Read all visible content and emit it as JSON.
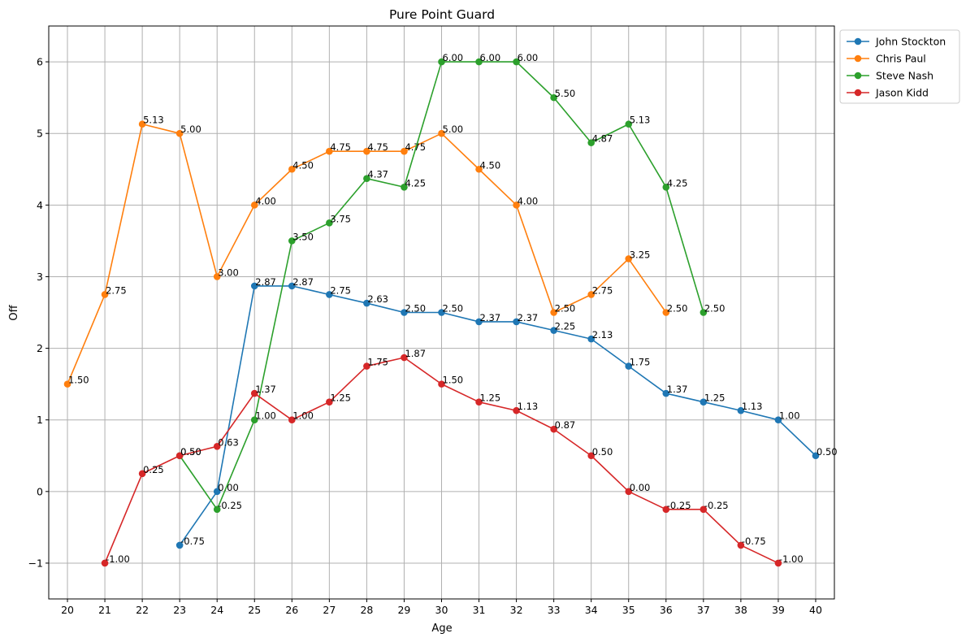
{
  "chart_data": {
    "type": "line",
    "title": "Pure Point Guard",
    "xlabel": "Age",
    "ylabel": "Off",
    "xlim": [
      19.5,
      40.5
    ],
    "ylim": [
      -1.5,
      6.5
    ],
    "x_ticks": [
      20,
      21,
      22,
      23,
      24,
      25,
      26,
      27,
      28,
      29,
      30,
      31,
      32,
      33,
      34,
      35,
      36,
      37,
      38,
      39,
      40
    ],
    "y_ticks": [
      -1,
      0,
      1,
      2,
      3,
      4,
      5,
      6
    ],
    "y_tick_labels": [
      "−1",
      "0",
      "1",
      "2",
      "3",
      "4",
      "5",
      "6"
    ],
    "grid": true,
    "legend_position": "outside top-right",
    "series": [
      {
        "name": "John Stockton",
        "color": "#1f77b4",
        "x": [
          23,
          24,
          25,
          26,
          27,
          28,
          29,
          30,
          31,
          32,
          33,
          34,
          35,
          36,
          37,
          38,
          39,
          40
        ],
        "y": [
          -0.75,
          0.0,
          2.87,
          2.87,
          2.75,
          2.63,
          2.5,
          2.5,
          2.37,
          2.37,
          2.25,
          2.13,
          1.75,
          1.37,
          1.25,
          1.13,
          1.0,
          0.5
        ],
        "labels": [
          "-0.75",
          "0.00",
          "2.87",
          "2.87",
          "2.75",
          "2.63",
          "2.50",
          "2.50",
          "2.37",
          "2.37",
          "2.25",
          "2.13",
          "1.75",
          "1.37",
          "1.25",
          "1.13",
          "1.00",
          "0.50"
        ]
      },
      {
        "name": "Chris Paul",
        "color": "#ff7f0e",
        "x": [
          20,
          21,
          22,
          23,
          24,
          25,
          26,
          27,
          28,
          29,
          30,
          31,
          32,
          33,
          34,
          35,
          36
        ],
        "y": [
          1.5,
          2.75,
          5.13,
          5.0,
          3.0,
          4.0,
          4.5,
          4.75,
          4.75,
          4.75,
          5.0,
          4.5,
          4.0,
          2.5,
          2.75,
          3.25,
          2.5
        ],
        "labels": [
          "1.50",
          "2.75",
          "5.13",
          "5.00",
          "3.00",
          "4.00",
          "4.50",
          "4.75",
          "4.75",
          "4.75",
          "5.00",
          "4.50",
          "4.00",
          "2.50",
          "2.75",
          "3.25",
          "2.50"
        ]
      },
      {
        "name": "Steve Nash",
        "color": "#2ca02c",
        "x": [
          23,
          24,
          25,
          26,
          27,
          28,
          29,
          30,
          31,
          32,
          33,
          34,
          35,
          36,
          37
        ],
        "y": [
          0.5,
          -0.25,
          1.0,
          3.5,
          3.75,
          4.37,
          4.25,
          6.0,
          6.0,
          6.0,
          5.5,
          4.87,
          5.13,
          4.25,
          2.5
        ],
        "labels": [
          "0.50",
          "-0.25",
          "1.00",
          "3.50",
          "3.75",
          "4.37",
          "4.25",
          "6.00",
          "6.00",
          "6.00",
          "5.50",
          "4.87",
          "5.13",
          "4.25",
          "2.50"
        ]
      },
      {
        "name": "Jason Kidd",
        "color": "#d62728",
        "x": [
          21,
          22,
          23,
          24,
          25,
          26,
          27,
          28,
          29,
          30,
          31,
          32,
          33,
          34,
          35,
          36,
          37,
          38,
          39
        ],
        "y": [
          -1.0,
          0.25,
          0.5,
          0.63,
          1.37,
          1.0,
          1.25,
          1.75,
          1.87,
          1.5,
          1.25,
          1.13,
          0.87,
          0.5,
          0.0,
          -0.25,
          -0.25,
          -0.75,
          -1.0
        ],
        "labels": [
          "-1.00",
          "0.25",
          "0.50",
          "0.63",
          "1.37",
          "1.00",
          "1.25",
          "1.75",
          "1.87",
          "1.50",
          "1.25",
          "1.13",
          "0.87",
          "0.50",
          "0.00",
          "-0.25",
          "-0.25",
          "-0.75",
          "-1.00"
        ]
      }
    ]
  }
}
